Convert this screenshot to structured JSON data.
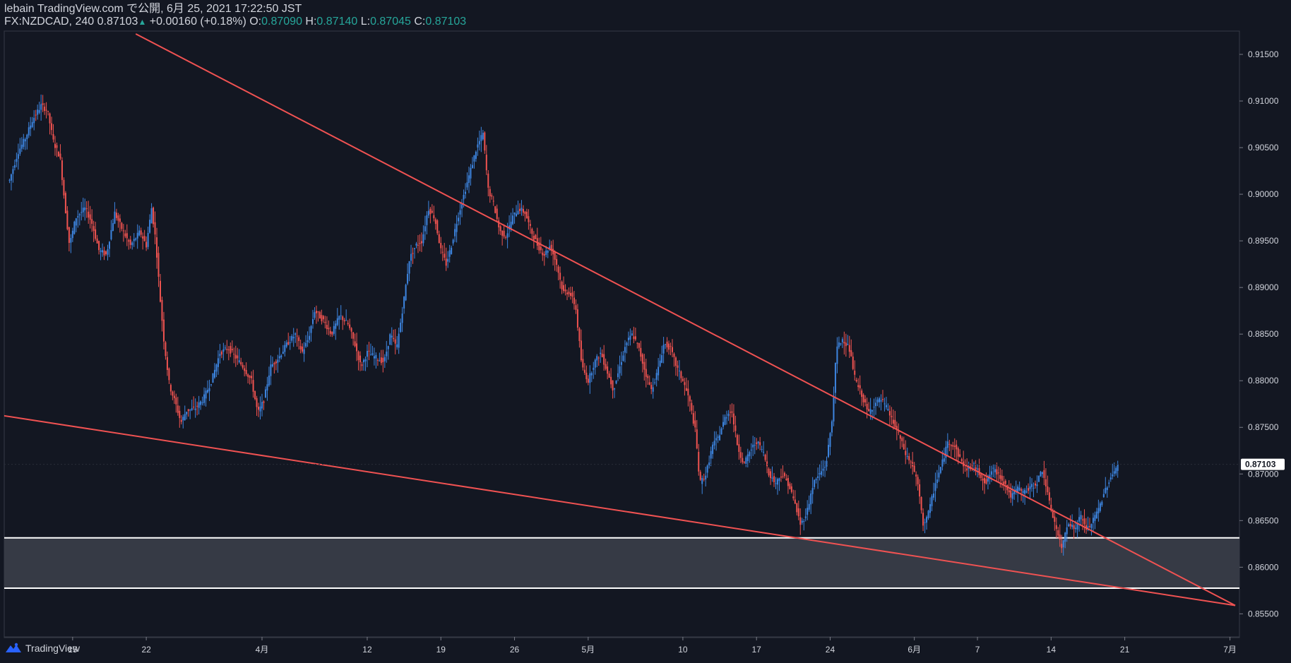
{
  "header": {
    "publisher": "lebain TradingView.com で公開, 6月 25, 2021 17:22:50 JST",
    "symbol": "FX:NZDCAD, 240",
    "last": "0.87103",
    "change": "+0.00160 (+0.18%)",
    "o_label": "O:",
    "o_val": "0.87090",
    "h_label": "H:",
    "h_val": "0.87140",
    "l_label": "L:",
    "l_val": "0.87045",
    "c_label": "C:",
    "c_val": "0.87103"
  },
  "footer": {
    "brand": "TradingView",
    "logo_icon": "tradingview-logo-icon"
  },
  "colors": {
    "background": "#131722",
    "up": "#3d85e0",
    "down": "#ef5350",
    "trendline": "#f05252",
    "zone_fill": "#363a45",
    "zone_border": "#ffffff",
    "axis_text": "#d1d4dc",
    "last_price_bg": "#ffffff"
  },
  "chart_data": {
    "type": "candlestick",
    "symbol": "FX:NZDCAD",
    "interval": "240",
    "ylim": [
      0.8548,
      0.9175
    ],
    "y_ticks": [
      0.855,
      0.86,
      0.865,
      0.87,
      0.875,
      0.88,
      0.885,
      0.89,
      0.895,
      0.9,
      0.905,
      0.91,
      0.915
    ],
    "y_tick_labels": [
      "0.85500",
      "0.86000",
      "0.86500",
      "0.87000",
      "0.87500",
      "0.88000",
      "0.88500",
      "0.89000",
      "0.89500",
      "0.90000",
      "0.90500",
      "0.91000",
      "0.91500"
    ],
    "x_range_days": [
      0,
      107
    ],
    "x_ticks": [
      {
        "label": "15",
        "day": 6
      },
      {
        "label": "22",
        "day": 13
      },
      {
        "label": "4月",
        "day": 24
      },
      {
        "label": "12",
        "day": 34
      },
      {
        "label": "19",
        "day": 41
      },
      {
        "label": "26",
        "day": 48
      },
      {
        "label": "5月",
        "day": 55
      },
      {
        "label": "10",
        "day": 64
      },
      {
        "label": "17",
        "day": 71
      },
      {
        "label": "24",
        "day": 78
      },
      {
        "label": "6月",
        "day": 86
      },
      {
        "label": "7",
        "day": 92
      },
      {
        "label": "14",
        "day": 99
      },
      {
        "label": "21",
        "day": 106
      },
      {
        "label": "7月",
        "day": 116
      }
    ],
    "last_price": 0.87103,
    "last_price_label": "0.87103",
    "price_path": [
      {
        "day": 0.0,
        "price": 0.9015
      },
      {
        "day": 0.8,
        "price": 0.9045
      },
      {
        "day": 1.5,
        "price": 0.906
      },
      {
        "day": 2.2,
        "price": 0.908
      },
      {
        "day": 3.0,
        "price": 0.9095
      },
      {
        "day": 3.6,
        "price": 0.909
      },
      {
        "day": 4.2,
        "price": 0.9055
      },
      {
        "day": 4.8,
        "price": 0.904
      },
      {
        "day": 5.3,
        "price": 0.8985
      },
      {
        "day": 5.7,
        "price": 0.8945
      },
      {
        "day": 6.3,
        "price": 0.8975
      },
      {
        "day": 7.2,
        "price": 0.8985
      },
      {
        "day": 7.8,
        "price": 0.897
      },
      {
        "day": 8.5,
        "price": 0.894
      },
      {
        "day": 9.2,
        "price": 0.8935
      },
      {
        "day": 10.0,
        "price": 0.898
      },
      {
        "day": 10.8,
        "price": 0.896
      },
      {
        "day": 11.5,
        "price": 0.8945
      },
      {
        "day": 12.4,
        "price": 0.896
      },
      {
        "day": 13.0,
        "price": 0.8945
      },
      {
        "day": 13.5,
        "price": 0.8985
      },
      {
        "day": 13.9,
        "price": 0.895
      },
      {
        "day": 14.3,
        "price": 0.889
      },
      {
        "day": 14.7,
        "price": 0.884
      },
      {
        "day": 15.2,
        "price": 0.8795
      },
      {
        "day": 15.8,
        "price": 0.8775
      },
      {
        "day": 16.3,
        "price": 0.8755
      },
      {
        "day": 16.8,
        "price": 0.8768
      },
      {
        "day": 17.6,
        "price": 0.877
      },
      {
        "day": 18.4,
        "price": 0.878
      },
      {
        "day": 19.2,
        "price": 0.88
      },
      {
        "day": 20.0,
        "price": 0.883
      },
      {
        "day": 20.8,
        "price": 0.8835
      },
      {
        "day": 21.5,
        "price": 0.8825
      },
      {
        "day": 22.2,
        "price": 0.8815
      },
      {
        "day": 23.0,
        "price": 0.88
      },
      {
        "day": 23.6,
        "price": 0.8765
      },
      {
        "day": 24.2,
        "price": 0.878
      },
      {
        "day": 24.8,
        "price": 0.8815
      },
      {
        "day": 25.6,
        "price": 0.8825
      },
      {
        "day": 26.4,
        "price": 0.884
      },
      {
        "day": 27.2,
        "price": 0.885
      },
      {
        "day": 27.8,
        "price": 0.883
      },
      {
        "day": 28.4,
        "price": 0.8845
      },
      {
        "day": 29.0,
        "price": 0.8875
      },
      {
        "day": 29.8,
        "price": 0.8865
      },
      {
        "day": 30.6,
        "price": 0.885
      },
      {
        "day": 31.4,
        "price": 0.887
      },
      {
        "day": 32.2,
        "price": 0.886
      },
      {
        "day": 32.8,
        "price": 0.884
      },
      {
        "day": 33.4,
        "price": 0.8815
      },
      {
        "day": 34.0,
        "price": 0.883
      },
      {
        "day": 34.8,
        "price": 0.8825
      },
      {
        "day": 35.6,
        "price": 0.882
      },
      {
        "day": 36.2,
        "price": 0.885
      },
      {
        "day": 36.8,
        "price": 0.8835
      },
      {
        "day": 37.4,
        "price": 0.888
      },
      {
        "day": 38.0,
        "price": 0.893
      },
      {
        "day": 38.6,
        "price": 0.8945
      },
      {
        "day": 39.2,
        "price": 0.895
      },
      {
        "day": 39.8,
        "price": 0.8985
      },
      {
        "day": 40.4,
        "price": 0.8975
      },
      {
        "day": 41.0,
        "price": 0.894
      },
      {
        "day": 41.5,
        "price": 0.8925
      },
      {
        "day": 42.0,
        "price": 0.8945
      },
      {
        "day": 42.6,
        "price": 0.8975
      },
      {
        "day": 43.2,
        "price": 0.9
      },
      {
        "day": 43.8,
        "price": 0.9025
      },
      {
        "day": 44.4,
        "price": 0.905
      },
      {
        "day": 45.0,
        "price": 0.9065
      },
      {
        "day": 45.5,
        "price": 0.9005
      },
      {
        "day": 46.0,
        "price": 0.899
      },
      {
        "day": 46.6,
        "price": 0.896
      },
      {
        "day": 47.2,
        "price": 0.8955
      },
      {
        "day": 47.8,
        "price": 0.8975
      },
      {
        "day": 48.4,
        "price": 0.8985
      },
      {
        "day": 49.0,
        "price": 0.898
      },
      {
        "day": 49.6,
        "price": 0.896
      },
      {
        "day": 50.2,
        "price": 0.8945
      },
      {
        "day": 50.8,
        "price": 0.8935
      },
      {
        "day": 51.4,
        "price": 0.8945
      },
      {
        "day": 52.0,
        "price": 0.8925
      },
      {
        "day": 52.6,
        "price": 0.8895
      },
      {
        "day": 53.2,
        "price": 0.8895
      },
      {
        "day": 53.8,
        "price": 0.888
      },
      {
        "day": 54.4,
        "price": 0.8815
      },
      {
        "day": 55.0,
        "price": 0.88
      },
      {
        "day": 55.6,
        "price": 0.882
      },
      {
        "day": 56.2,
        "price": 0.883
      },
      {
        "day": 56.8,
        "price": 0.881
      },
      {
        "day": 57.4,
        "price": 0.879
      },
      {
        "day": 58.0,
        "price": 0.8815
      },
      {
        "day": 58.6,
        "price": 0.884
      },
      {
        "day": 59.2,
        "price": 0.885
      },
      {
        "day": 59.8,
        "price": 0.8835
      },
      {
        "day": 60.4,
        "price": 0.881
      },
      {
        "day": 61.0,
        "price": 0.879
      },
      {
        "day": 61.6,
        "price": 0.881
      },
      {
        "day": 62.2,
        "price": 0.884
      },
      {
        "day": 62.8,
        "price": 0.8835
      },
      {
        "day": 63.4,
        "price": 0.8815
      },
      {
        "day": 64.0,
        "price": 0.88
      },
      {
        "day": 64.6,
        "price": 0.878
      },
      {
        "day": 65.2,
        "price": 0.8745
      },
      {
        "day": 65.6,
        "price": 0.869
      },
      {
        "day": 66.2,
        "price": 0.87
      },
      {
        "day": 66.8,
        "price": 0.873
      },
      {
        "day": 67.4,
        "price": 0.874
      },
      {
        "day": 68.0,
        "price": 0.876
      },
      {
        "day": 68.6,
        "price": 0.877
      },
      {
        "day": 69.2,
        "price": 0.873
      },
      {
        "day": 69.8,
        "price": 0.871
      },
      {
        "day": 70.4,
        "price": 0.8725
      },
      {
        "day": 71.0,
        "price": 0.8735
      },
      {
        "day": 71.6,
        "price": 0.8725
      },
      {
        "day": 72.2,
        "price": 0.87
      },
      {
        "day": 72.8,
        "price": 0.869
      },
      {
        "day": 73.4,
        "price": 0.87
      },
      {
        "day": 74.0,
        "price": 0.869
      },
      {
        "day": 74.6,
        "price": 0.867
      },
      {
        "day": 75.2,
        "price": 0.8645
      },
      {
        "day": 75.8,
        "price": 0.866
      },
      {
        "day": 76.4,
        "price": 0.869
      },
      {
        "day": 77.0,
        "price": 0.87
      },
      {
        "day": 77.6,
        "price": 0.871
      },
      {
        "day": 78.2,
        "price": 0.876
      },
      {
        "day": 78.6,
        "price": 0.8835
      },
      {
        "day": 79.2,
        "price": 0.8845
      },
      {
        "day": 79.8,
        "price": 0.8835
      },
      {
        "day": 80.4,
        "price": 0.88
      },
      {
        "day": 81.0,
        "price": 0.8785
      },
      {
        "day": 81.6,
        "price": 0.8765
      },
      {
        "day": 82.2,
        "price": 0.8775
      },
      {
        "day": 82.8,
        "price": 0.878
      },
      {
        "day": 83.4,
        "price": 0.877
      },
      {
        "day": 84.0,
        "price": 0.8755
      },
      {
        "day": 84.6,
        "price": 0.874
      },
      {
        "day": 85.2,
        "price": 0.872
      },
      {
        "day": 85.8,
        "price": 0.871
      },
      {
        "day": 86.4,
        "price": 0.8685
      },
      {
        "day": 86.8,
        "price": 0.8645
      },
      {
        "day": 87.4,
        "price": 0.866
      },
      {
        "day": 88.0,
        "price": 0.869
      },
      {
        "day": 88.6,
        "price": 0.871
      },
      {
        "day": 89.2,
        "price": 0.8735
      },
      {
        "day": 89.8,
        "price": 0.873
      },
      {
        "day": 90.4,
        "price": 0.8715
      },
      {
        "day": 91.0,
        "price": 0.8705
      },
      {
        "day": 91.6,
        "price": 0.871
      },
      {
        "day": 92.2,
        "price": 0.87
      },
      {
        "day": 92.8,
        "price": 0.869
      },
      {
        "day": 93.4,
        "price": 0.8705
      },
      {
        "day": 94.0,
        "price": 0.87
      },
      {
        "day": 94.6,
        "price": 0.869
      },
      {
        "day": 95.2,
        "price": 0.8675
      },
      {
        "day": 95.8,
        "price": 0.8685
      },
      {
        "day": 96.4,
        "price": 0.868
      },
      {
        "day": 97.0,
        "price": 0.8685
      },
      {
        "day": 97.6,
        "price": 0.869
      },
      {
        "day": 98.2,
        "price": 0.8705
      },
      {
        "day": 98.8,
        "price": 0.867
      },
      {
        "day": 99.4,
        "price": 0.8645
      },
      {
        "day": 100.0,
        "price": 0.862
      },
      {
        "day": 100.6,
        "price": 0.865
      },
      {
        "day": 101.2,
        "price": 0.864
      },
      {
        "day": 101.8,
        "price": 0.8655
      },
      {
        "day": 102.4,
        "price": 0.864
      },
      {
        "day": 103.0,
        "price": 0.865
      },
      {
        "day": 103.6,
        "price": 0.8665
      },
      {
        "day": 104.2,
        "price": 0.8685
      },
      {
        "day": 104.8,
        "price": 0.87
      },
      {
        "day": 105.4,
        "price": 0.871
      }
    ],
    "trendlines": [
      {
        "name": "upper",
        "points": [
          {
            "day": 12.0,
            "price": 0.9172
          },
          {
            "day": 116.5,
            "price": 0.8559
          }
        ]
      },
      {
        "name": "lower",
        "points": [
          {
            "day": -2.0,
            "price": 0.8765
          },
          {
            "day": 116.5,
            "price": 0.8559
          }
        ]
      }
    ],
    "zone": {
      "top": 0.86315,
      "bottom": 0.85775
    }
  }
}
